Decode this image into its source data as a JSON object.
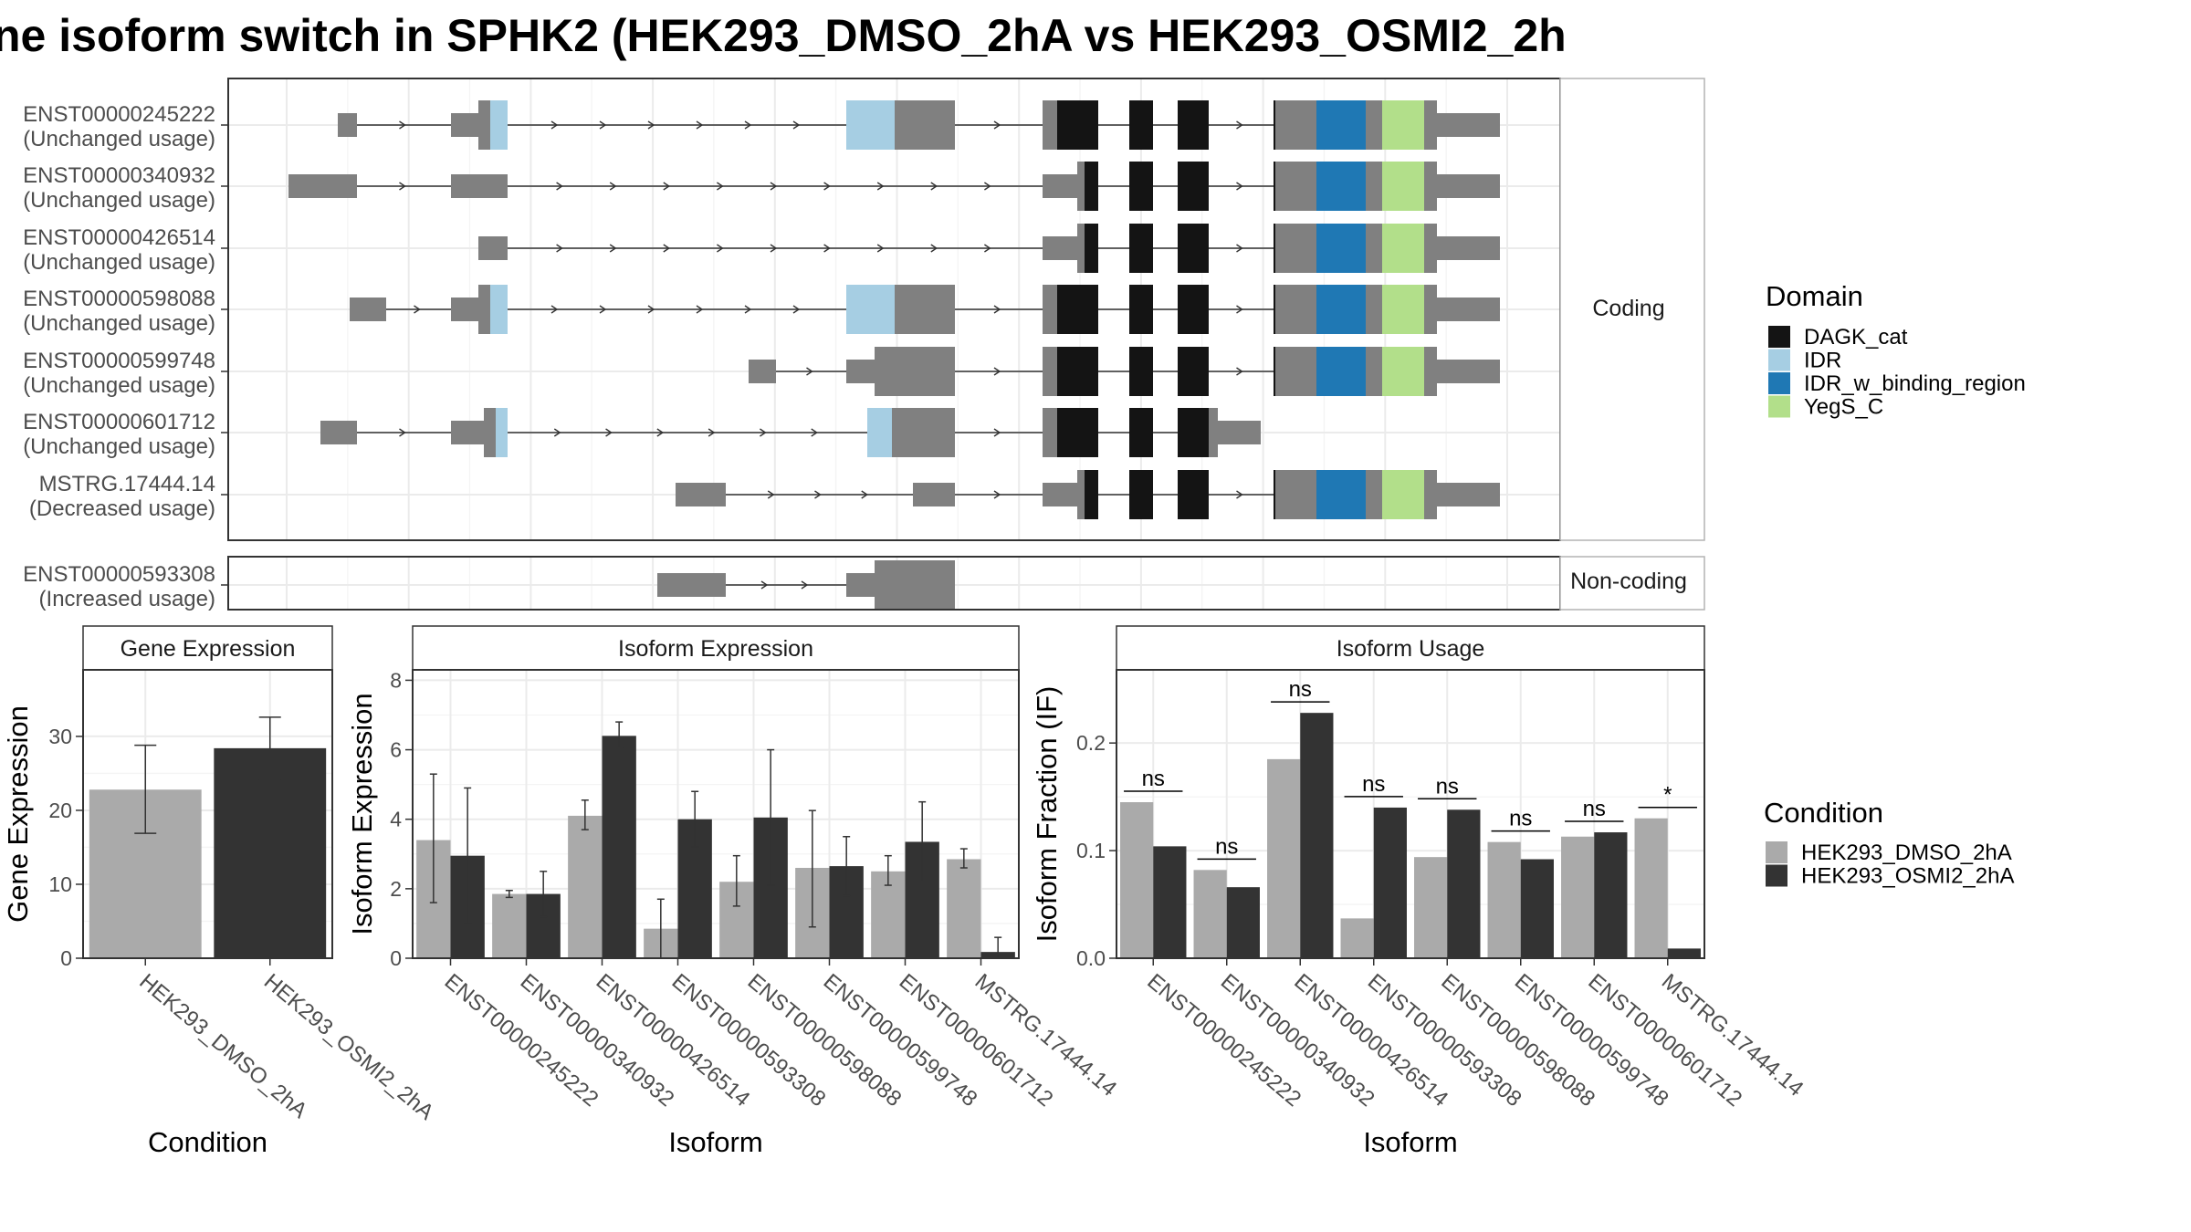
{
  "title": "ne isoform switch in SPHK2 (HEK293_DMSO_2hA vs HEK293_OSMI2_2h",
  "colors": {
    "exon": "#808080",
    "dmso": "#aaaaaa",
    "osmi": "#333333",
    "DAGK_cat": "#141414",
    "IDR": "#a6cee3",
    "IDR_w_binding_region": "#1f78b4",
    "YegS_C": "#b2df8a",
    "grid": "#ebebeb",
    "panel_border": "#333333",
    "strip_border": "#b3b3b3"
  },
  "facets": {
    "coding": "Coding",
    "noncoding": "Non-coding"
  },
  "transcripts": [
    {
      "id": "ENST00000245222",
      "usage": "(Unchanged usage)"
    },
    {
      "id": "ENST00000340932",
      "usage": "(Unchanged usage)"
    },
    {
      "id": "ENST00000426514",
      "usage": "(Unchanged usage)"
    },
    {
      "id": "ENST00000598088",
      "usage": "(Unchanged usage)"
    },
    {
      "id": "ENST00000599748",
      "usage": "(Unchanged usage)"
    },
    {
      "id": "ENST00000601712",
      "usage": "(Unchanged usage)"
    },
    {
      "id": "MSTRG.17444.14",
      "usage": "(Decreased usage)"
    },
    {
      "id": "ENST00000593308",
      "usage": "(Increased usage)"
    }
  ],
  "legend_domain": {
    "title": "Domain",
    "items": [
      {
        "label": "DAGK_cat",
        "color": "#141414"
      },
      {
        "label": "IDR",
        "color": "#a6cee3"
      },
      {
        "label": "IDR_w_binding_region",
        "color": "#1f78b4"
      },
      {
        "label": "YegS_C",
        "color": "#b2df8a"
      }
    ]
  },
  "legend_condition": {
    "title": "Condition",
    "items": [
      {
        "label": "HEK293_DMSO_2hA",
        "color": "#aaaaaa"
      },
      {
        "label": "HEK293_OSMI2_2hA",
        "color": "#333333"
      }
    ]
  },
  "chart_data": [
    {
      "type": "bar",
      "strip": "Gene Expression",
      "xlabel": "Condition",
      "ylabel": "Gene Expression",
      "categories": [
        "HEK293_DMSO_2hA",
        "HEK293_OSMI2_2hA"
      ],
      "values": [
        22.8,
        28.4
      ],
      "err_low": [
        16.9,
        24.1
      ],
      "err_high": [
        28.8,
        32.6
      ],
      "yticks": [
        0,
        10,
        20,
        30
      ],
      "ylim": [
        0,
        39
      ]
    },
    {
      "type": "bar",
      "strip": "Isoform Expression",
      "xlabel": "Isoform",
      "ylabel": "Isoform Expression",
      "categories": [
        "ENST00000245222",
        "ENST00000340932",
        "ENST00000426514",
        "ENST00000593308",
        "ENST00000598088",
        "ENST00000599748",
        "ENST00000601712",
        "MSTRG.17444.14"
      ],
      "series": [
        {
          "name": "HEK293_DMSO_2hA",
          "values": [
            3.4,
            1.85,
            4.1,
            0.85,
            2.2,
            2.6,
            2.5,
            2.85
          ],
          "err_low": [
            1.6,
            1.75,
            3.7,
            0.0,
            1.5,
            0.9,
            2.1,
            2.6
          ],
          "err_high": [
            5.3,
            1.95,
            4.55,
            1.7,
            2.95,
            4.25,
            2.95,
            3.15
          ]
        },
        {
          "name": "HEK293_OSMI2_2hA",
          "values": [
            2.95,
            1.85,
            6.4,
            4.0,
            4.05,
            2.65,
            3.35,
            0.18
          ],
          "err_low": [
            1.0,
            1.2,
            6.05,
            3.2,
            2.1,
            1.8,
            2.2,
            0.0
          ],
          "err_high": [
            4.9,
            2.5,
            6.8,
            4.8,
            6.0,
            3.5,
            4.5,
            0.6
          ]
        }
      ],
      "yticks": [
        0,
        2,
        4,
        6,
        8
      ],
      "ylim": [
        0,
        8.3
      ]
    },
    {
      "type": "bar",
      "strip": "Isoform Usage",
      "xlabel": "Isoform",
      "ylabel": "Isoform Fraction (IF)",
      "categories": [
        "ENST00000245222",
        "ENST00000340932",
        "ENST00000426514",
        "ENST00000593308",
        "ENST00000598088",
        "ENST00000599748",
        "ENST00000601712",
        "MSTRG.17444.14"
      ],
      "series": [
        {
          "name": "HEK293_DMSO_2hA",
          "values": [
            0.145,
            0.082,
            0.185,
            0.037,
            0.094,
            0.108,
            0.113,
            0.13
          ]
        },
        {
          "name": "HEK293_OSMI2_2hA",
          "values": [
            0.104,
            0.066,
            0.228,
            0.14,
            0.138,
            0.092,
            0.117,
            0.009
          ]
        }
      ],
      "significance": [
        "ns",
        "ns",
        "ns",
        "ns",
        "ns",
        "ns",
        "ns",
        "*"
      ],
      "yticks": [
        0.0,
        0.1,
        0.2
      ],
      "ytick_labels": [
        "0.0",
        "0.1",
        "0.2"
      ],
      "ylim": [
        0,
        0.268
      ]
    }
  ]
}
